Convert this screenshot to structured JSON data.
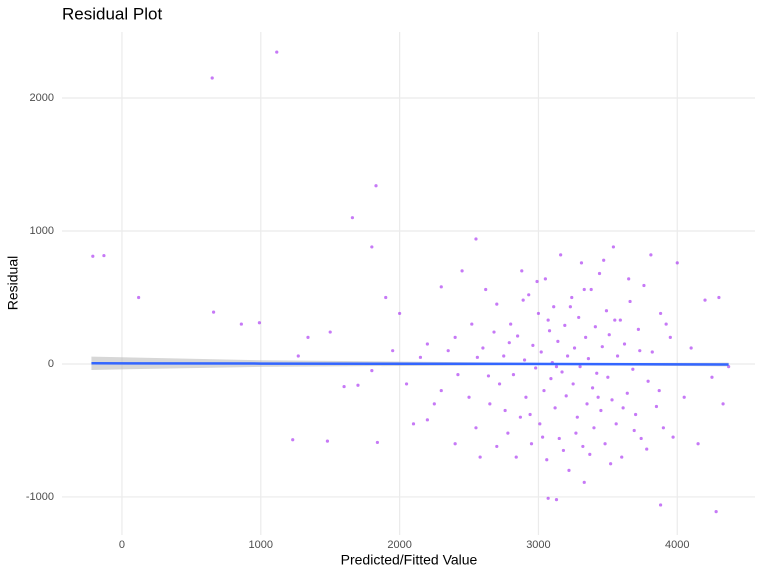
{
  "chart_data": {
    "type": "scatter",
    "title": "Residual Plot",
    "x_label": "Predicted/Fitted Value",
    "y_label": "Residual",
    "color": "#a020f0",
    "grid": true,
    "xlim": [
      -432,
      4560
    ],
    "ylim": [
      -1286,
      2496
    ],
    "xticks": [
      0,
      1000,
      2000,
      3000,
      4000
    ],
    "yticks": [
      -1000,
      0,
      1000,
      2000
    ],
    "x": [
      -210,
      -130,
      120,
      650,
      1115,
      660,
      860,
      990,
      1230,
      1480,
      1660,
      1830,
      1800,
      1840,
      2550,
      3880,
      4280,
      3070,
      3130,
      3330,
      1270,
      1340,
      1500,
      1600,
      1700,
      1900,
      2000,
      2100,
      2200,
      2300,
      2400,
      2450,
      2600,
      2650,
      2700,
      2720,
      2750,
      2780,
      2800,
      2820,
      2850,
      2870,
      2880,
      2900,
      2910,
      2930,
      2950,
      2960,
      2980,
      3000,
      3010,
      3020,
      3040,
      3050,
      3060,
      3080,
      3090,
      3100,
      3110,
      3120,
      3140,
      3150,
      3160,
      3170,
      3190,
      3200,
      3210,
      3220,
      3240,
      3250,
      3260,
      3280,
      3290,
      3300,
      3310,
      3320,
      3340,
      3350,
      3360,
      3380,
      3390,
      3400,
      3410,
      3420,
      3440,
      3450,
      3460,
      3480,
      3490,
      3500,
      3510,
      3530,
      3540,
      3560,
      3570,
      3590,
      3600,
      3620,
      3640,
      3660,
      3680,
      3700,
      3720,
      3740,
      3760,
      3790,
      3820,
      3850,
      3880,
      3900,
      3950,
      4000,
      4050,
      4100,
      4150,
      4200,
      4250,
      4300,
      4330,
      4370,
      2500,
      2520,
      2550,
      2560,
      2580,
      2620,
      2640,
      2680,
      2700,
      2760,
      2790,
      2840,
      2890,
      2940,
      2990,
      3030,
      3070,
      3130,
      3180,
      3230,
      3270,
      3330,
      3370,
      3430,
      3470,
      3520,
      3550,
      3610,
      3650,
      3690,
      3730,
      3780,
      3810,
      3870,
      3920,
      3970,
      2300,
      2350,
      2400,
      2420,
      2200,
      2250,
      2150,
      2050,
      1950,
      1800
    ],
    "values": [
      810,
      815,
      500,
      2150,
      2345,
      390,
      300,
      310,
      -570,
      -580,
      1100,
      1340,
      880,
      -590,
      940,
      -1060,
      -1110,
      -1010,
      -1020,
      -890,
      60,
      200,
      240,
      -170,
      -160,
      500,
      380,
      -450,
      -420,
      580,
      -600,
      700,
      120,
      -300,
      450,
      -150,
      60,
      -520,
      300,
      -80,
      210,
      -400,
      700,
      30,
      -250,
      520,
      -600,
      140,
      -30,
      380,
      -450,
      90,
      -200,
      640,
      -720,
      250,
      -110,
      10,
      430,
      -330,
      170,
      -560,
      820,
      -60,
      290,
      -240,
      60,
      -800,
      500,
      -150,
      120,
      -400,
      350,
      -20,
      760,
      -620,
      200,
      -300,
      40,
      560,
      -180,
      -480,
      280,
      -70,
      680,
      -350,
      130,
      -600,
      400,
      -100,
      220,
      -270,
      880,
      -450,
      60,
      330,
      -700,
      150,
      -220,
      470,
      -40,
      -380,
      260,
      -560,
      590,
      -130,
      90,
      -320,
      380,
      -480,
      200,
      760,
      -250,
      120,
      -600,
      480,
      -100,
      500,
      -300,
      -20,
      -250,
      300,
      -480,
      50,
      -700,
      560,
      -90,
      240,
      -620,
      -350,
      160,
      -700,
      480,
      -380,
      620,
      -550,
      330,
      -20,
      -650,
      430,
      -520,
      560,
      -680,
      -250,
      780,
      -750,
      330,
      -330,
      640,
      -500,
      100,
      -640,
      820,
      -200,
      300,
      -550,
      -200,
      100,
      200,
      -80,
      150,
      -300,
      50,
      -150,
      100,
      -50
    ],
    "trend": {
      "color": "#3366ff",
      "band_color": "#bdbdbd",
      "x": [
        -220,
        1000,
        3100,
        4370
      ],
      "y": [
        5,
        3,
        0,
        -4
      ],
      "lower": [
        -45,
        -22,
        -7,
        -18
      ],
      "upper": [
        55,
        28,
        7,
        10
      ]
    }
  }
}
